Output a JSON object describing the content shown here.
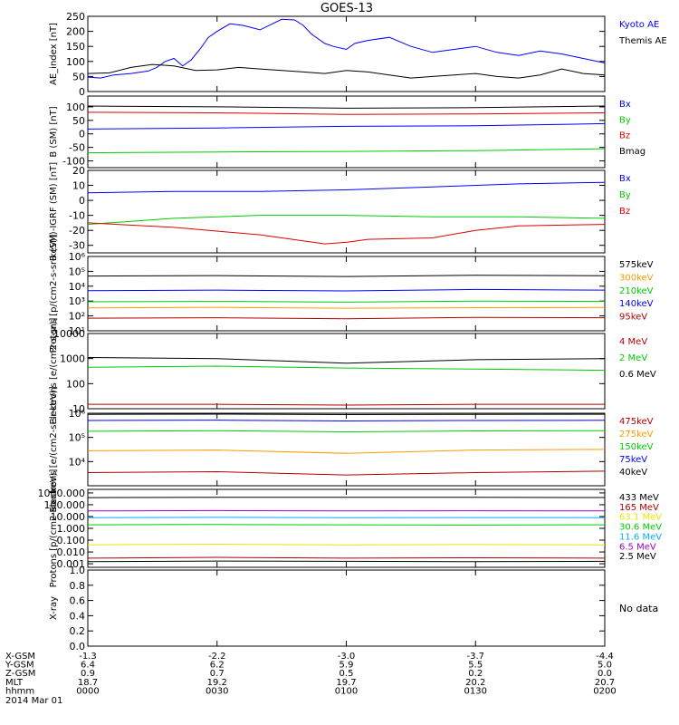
{
  "title": "GOES-13",
  "colors": {
    "black": "#000000",
    "blue": "#0000ff",
    "green": "#00cc00",
    "red": "#dd0000",
    "darkred": "#b00000",
    "orange": "#ff9900",
    "yellow": "#e6e600",
    "cyan": "#00aaff",
    "purple": "#a000c0",
    "plain": "#000000"
  },
  "chart_data": [
    {
      "type": "line",
      "id": "ae",
      "ylabel": "AE_index [nT]",
      "ylim": [
        0,
        250
      ],
      "log": false,
      "yticks": [
        0,
        50,
        100,
        150,
        200,
        250
      ],
      "ytick_labels": [
        "0",
        "50",
        "100",
        "150",
        "200",
        "250"
      ],
      "series": [
        {
          "name": "Kyoto AE",
          "color": "#0000ff",
          "x": [
            0,
            3,
            6,
            10,
            14,
            16,
            18,
            20,
            22,
            24,
            26,
            28,
            30,
            33,
            36,
            40,
            45,
            48,
            50,
            52,
            55,
            57,
            60,
            62,
            65,
            70,
            75,
            80,
            85,
            90,
            95,
            100,
            105,
            110,
            115,
            120
          ],
          "y": [
            48,
            45,
            55,
            60,
            68,
            80,
            100,
            110,
            85,
            105,
            140,
            180,
            200,
            225,
            220,
            205,
            240,
            238,
            220,
            190,
            160,
            150,
            140,
            160,
            170,
            180,
            150,
            130,
            140,
            150,
            130,
            120,
            135,
            125,
            110,
            95
          ]
        },
        {
          "name": "Themis AE",
          "color": "#000000",
          "x": [
            0,
            5,
            10,
            15,
            20,
            25,
            30,
            35,
            40,
            45,
            50,
            55,
            60,
            65,
            70,
            75,
            80,
            85,
            90,
            95,
            100,
            105,
            110,
            115,
            120
          ],
          "y": [
            60,
            62,
            80,
            90,
            85,
            70,
            72,
            80,
            75,
            70,
            65,
            60,
            70,
            65,
            55,
            45,
            50,
            55,
            60,
            50,
            45,
            55,
            75,
            60,
            55
          ]
        }
      ]
    },
    {
      "type": "line",
      "id": "bsm",
      "ylabel": "B (SM) [nT]",
      "ylim": [
        -125,
        140
      ],
      "log": false,
      "yticks": [
        -100,
        -50,
        0,
        50,
        100
      ],
      "ytick_labels": [
        "-100",
        "-50",
        "0",
        "50",
        "100"
      ],
      "series": [
        {
          "name": "Bx",
          "color": "#0000ff",
          "x": [
            0,
            30,
            60,
            90,
            120
          ],
          "y": [
            18,
            22,
            28,
            30,
            38
          ]
        },
        {
          "name": "By",
          "color": "#00cc00",
          "x": [
            0,
            30,
            60,
            90,
            120
          ],
          "y": [
            -70,
            -67,
            -65,
            -62,
            -55
          ]
        },
        {
          "name": "Bz",
          "color": "#dd0000",
          "x": [
            0,
            30,
            60,
            90,
            120
          ],
          "y": [
            80,
            78,
            72,
            74,
            78
          ]
        },
        {
          "name": "Bmag",
          "color": "#000000",
          "x": [
            0,
            30,
            60,
            90,
            120
          ],
          "y": [
            103,
            100,
            95,
            97,
            103
          ]
        }
      ]
    },
    {
      "type": "line",
      "id": "bigrf",
      "ylabel": "B (SM)-IGRF (SM) [nT]",
      "ylim": [
        -35,
        20
      ],
      "log": false,
      "yticks": [
        -30,
        -20,
        -10,
        0,
        10,
        20
      ],
      "ytick_labels": [
        "-30",
        "-20",
        "-10",
        "0",
        "10",
        "20"
      ],
      "series": [
        {
          "name": "Bx",
          "color": "#0000ff",
          "x": [
            0,
            20,
            40,
            60,
            80,
            100,
            120
          ],
          "y": [
            5,
            6,
            6,
            7,
            9,
            11,
            12
          ]
        },
        {
          "name": "By",
          "color": "#00cc00",
          "x": [
            0,
            20,
            40,
            60,
            80,
            100,
            120
          ],
          "y": [
            -16,
            -12,
            -10,
            -10,
            -11,
            -11,
            -12
          ]
        },
        {
          "name": "Bz",
          "color": "#dd0000",
          "x": [
            0,
            20,
            40,
            55,
            60,
            65,
            80,
            90,
            100,
            120
          ],
          "y": [
            -15,
            -18,
            -23,
            -29,
            -28,
            -26,
            -25,
            -20,
            -17,
            -16
          ]
        }
      ]
    },
    {
      "type": "line",
      "id": "protons_kev",
      "ylabel": "Protons [p/(cm2-s-sr-keV)]",
      "ylim": [
        10,
        1000000
      ],
      "log": true,
      "yticks": [
        10,
        100,
        1000,
        10000,
        100000,
        1000000
      ],
      "ytick_labels": [
        "10¹",
        "10²",
        "10³",
        "10⁴",
        "10⁵",
        "10⁶"
      ],
      "series": [
        {
          "name": "575keV",
          "color": "#000000",
          "x": [
            0,
            30,
            60,
            90,
            120
          ],
          "y": [
            48000,
            52000,
            45000,
            55000,
            50000
          ]
        },
        {
          "name": "300keV",
          "color": "#ff9900",
          "x": [
            0,
            30,
            60,
            90,
            120
          ],
          "y": [
            350,
            380,
            330,
            360,
            370
          ]
        },
        {
          "name": "210keV",
          "color": "#00cc00",
          "x": [
            0,
            30,
            60,
            90,
            120
          ],
          "y": [
            900,
            950,
            850,
            1000,
            950
          ]
        },
        {
          "name": "140keV",
          "color": "#0000ff",
          "x": [
            0,
            30,
            60,
            90,
            120
          ],
          "y": [
            5000,
            5500,
            4800,
            6000,
            5500
          ]
        },
        {
          "name": "95keV",
          "color": "#b00000",
          "x": [
            0,
            30,
            60,
            90,
            120
          ],
          "y": [
            70,
            75,
            65,
            80,
            75
          ]
        }
      ]
    },
    {
      "type": "line",
      "id": "electrons_mev",
      "ylabel": "Electrons [e/(cm2-s-sr)]",
      "ylim": [
        10,
        10000
      ],
      "log": true,
      "yticks": [
        10,
        100,
        1000,
        10000
      ],
      "ytick_labels": [
        "10",
        "100",
        "1000",
        "10000"
      ],
      "series": [
        {
          "name": "4 MeV",
          "color": "#b00000",
          "x": [
            0,
            30,
            60,
            90,
            120
          ],
          "y": [
            15,
            15,
            14,
            15,
            15
          ]
        },
        {
          "name": "2 MeV",
          "color": "#00cc00",
          "x": [
            0,
            30,
            60,
            90,
            120
          ],
          "y": [
            450,
            500,
            420,
            380,
            340
          ]
        },
        {
          "name": "0.6 MeV",
          "color": "#000000",
          "x": [
            0,
            30,
            60,
            90,
            120
          ],
          "y": [
            1100,
            1000,
            650,
            900,
            1000
          ]
        }
      ]
    },
    {
      "type": "line",
      "id": "electrons_kev",
      "ylabel": "Electrons [e/(cm2-s-sr-keV)]",
      "ylim": [
        1000,
        1000000
      ],
      "log": true,
      "yticks": [
        10000,
        100000,
        1000000
      ],
      "ytick_labels": [
        "10⁴",
        "10⁵",
        "10⁶"
      ],
      "series": [
        {
          "name": "475keV",
          "color": "#b00000",
          "x": [
            0,
            30,
            60,
            90,
            120
          ],
          "y": [
            3500,
            3800,
            2800,
            3500,
            4000
          ]
        },
        {
          "name": "275keV",
          "color": "#ff9900",
          "x": [
            0,
            30,
            60,
            90,
            120
          ],
          "y": [
            28000,
            30000,
            22000,
            30000,
            32000
          ]
        },
        {
          "name": "150keV",
          "color": "#00cc00",
          "x": [
            0,
            30,
            60,
            90,
            120
          ],
          "y": [
            180000,
            190000,
            170000,
            185000,
            190000
          ]
        },
        {
          "name": "75keV",
          "color": "#0000ff",
          "x": [
            0,
            30,
            60,
            90,
            120
          ],
          "y": [
            500000,
            520000,
            480000,
            500000,
            510000
          ]
        },
        {
          "name": "40keV",
          "color": "#000000",
          "x": [
            0,
            30,
            60,
            90,
            120
          ],
          "y": [
            900000,
            920000,
            880000,
            900000,
            910000
          ]
        }
      ]
    },
    {
      "type": "line",
      "id": "protons_mev",
      "ylabel": "Protons [p/(cm2-s-sr-keV)]",
      "ylim": [
        0.0005,
        2000
      ],
      "log": true,
      "yticks": [
        0.001,
        0.01,
        0.1,
        1,
        10,
        100,
        1000
      ],
      "ytick_labels": [
        "0.001",
        "0.010",
        "0.100",
        "1.000",
        "10.000",
        "100.000",
        "1000.000"
      ],
      "series": [
        {
          "name": "433 MeV",
          "color": "#000000",
          "x": [
            0,
            30,
            60,
            90,
            120
          ],
          "y": [
            400,
            420,
            430,
            420,
            410
          ]
        },
        {
          "name": "165 MeV",
          "color": "#b00000",
          "x": [
            0,
            30,
            60,
            90,
            120
          ],
          "y": [
            0.003,
            0.0035,
            0.003,
            0.0032,
            0.003
          ]
        },
        {
          "name": "63.1 MeV",
          "color": "#e6e600",
          "x": [
            0,
            30,
            60,
            90,
            120
          ],
          "y": [
            0.04,
            0.045,
            0.04,
            0.042,
            0.04
          ]
        },
        {
          "name": "30.6 MeV",
          "color": "#00cc00",
          "x": [
            0,
            30,
            60,
            90,
            120
          ],
          "y": [
            2.0,
            2.1,
            2.0,
            1.9,
            2.0
          ]
        },
        {
          "name": "11.6 MeV",
          "color": "#00aaff",
          "x": [
            0,
            30,
            60,
            90,
            120
          ],
          "y": [
            8,
            8.5,
            8,
            8.2,
            8
          ]
        },
        {
          "name": "6.5 MeV",
          "color": "#a000c0",
          "x": [
            0,
            30,
            60,
            90,
            120
          ],
          "y": [
            30,
            32,
            30,
            31,
            30
          ]
        },
        {
          "name": "2.5 MeV",
          "color": "#000000",
          "x": [
            0,
            30,
            60,
            90,
            120
          ],
          "y": [
            0.0015,
            0.0017,
            0.0016,
            0.0015,
            0.0016
          ]
        }
      ]
    },
    {
      "type": "line",
      "id": "xray",
      "ylabel": "X-ray",
      "ylim": [
        0,
        1
      ],
      "log": false,
      "yticks": [
        0,
        0.2,
        0.4,
        0.6,
        0.8,
        1.0
      ],
      "ytick_labels": [
        "0.0",
        "0.2",
        "0.4",
        "0.6",
        "0.8",
        "1.0"
      ],
      "series": [],
      "note": "No data"
    }
  ],
  "x_axis": {
    "xlim": [
      0,
      120
    ],
    "ticks": [
      0,
      30,
      60,
      90,
      120
    ],
    "rows": [
      {
        "label": "X-GSM",
        "values": [
          "-1.3",
          "-2.2",
          "-3.0",
          "-3.7",
          "-4.4"
        ]
      },
      {
        "label": "Y-GSM",
        "values": [
          "6.4",
          "6.2",
          "5.9",
          "5.5",
          "5.0"
        ]
      },
      {
        "label": "Z-GSM",
        "values": [
          "0.9",
          "0.7",
          "0.5",
          "0.2",
          "0.0"
        ]
      },
      {
        "label": "MLT",
        "values": [
          "18.7",
          "19.2",
          "19.7",
          "20.2",
          "20.7"
        ]
      },
      {
        "label": "hhmm",
        "values": [
          "0000",
          "0030",
          "0100",
          "0130",
          "0200"
        ]
      }
    ],
    "date": "2014 Mar 01"
  }
}
